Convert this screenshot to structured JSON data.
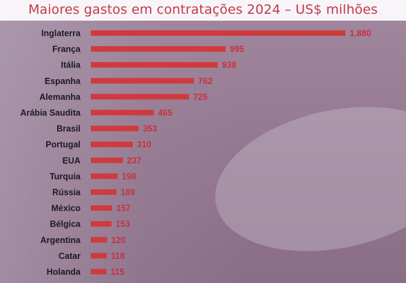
{
  "title": "Maiores gastos em contratações 2024 – US$ milhões",
  "chart_data": {
    "type": "bar",
    "orientation": "horizontal",
    "title": "Maiores gastos em contratações 2024 – US$ milhões",
    "categories": [
      "Inglaterra",
      "França",
      "Itália",
      "Espanha",
      "Alemanha",
      "Arábia Saudita",
      "Brasil",
      "Portugal",
      "EUA",
      "Turquia",
      "Rússia",
      "México",
      "Bélgica",
      "Argentina",
      "Catar",
      "Holanda"
    ],
    "values": [
      1880,
      995,
      938,
      762,
      725,
      465,
      353,
      310,
      237,
      198,
      189,
      157,
      153,
      120,
      118,
      115
    ],
    "value_labels": [
      "1.880",
      "995",
      "938",
      "762",
      "725",
      "465",
      "353",
      "310",
      "237",
      "198",
      "189",
      "157",
      "153",
      "120",
      "118",
      "115"
    ],
    "xlim": [
      0,
      1880
    ],
    "grid": false,
    "legend": "none",
    "bar_color": "#cf3b3c",
    "value_label_color": "#c9303f",
    "title_color": "#c4384b"
  }
}
